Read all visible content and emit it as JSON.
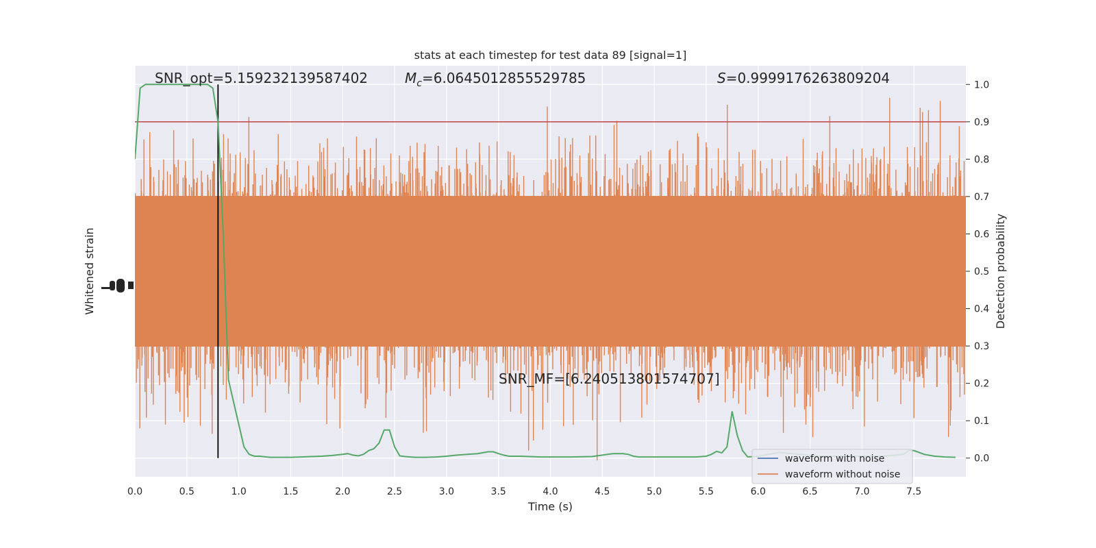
{
  "chart_data": {
    "type": "line",
    "title": "stats at each timestep for test data 89 [signal=1]",
    "xlabel": "Time (s)",
    "ylabel_left": "Whitened strain",
    "ylabel_right": "Detection probability",
    "xlim": [
      0.0,
      8.0
    ],
    "ylim_right": [
      -0.05,
      1.05
    ],
    "x_ticks": [
      "0.0",
      "0.5",
      "1.0",
      "1.5",
      "2.0",
      "2.5",
      "3.0",
      "3.5",
      "4.0",
      "4.5",
      "5.0",
      "5.5",
      "6.0",
      "6.5",
      "7.0",
      "7.5"
    ],
    "y_ticks_right": [
      "0.0",
      "0.1",
      "0.2",
      "0.3",
      "0.4",
      "0.5",
      "0.6",
      "0.7",
      "0.8",
      "0.9",
      "1.0"
    ],
    "grid": true,
    "legend_placement": "lower-right",
    "annotations": {
      "snr_opt": "SNR_opt=5.159232139587402",
      "mc_symbol": "M",
      "mc_sub": "c",
      "mc_value": "=6.0645012855529785",
      "s_symbol": "S",
      "s_value": "=0.9999176263809204",
      "snr_mf": "SNR_MF=[6.240513801574707]"
    },
    "threshold": {
      "value": 0.9,
      "color": "#c44e52"
    },
    "marker_line": {
      "x": 0.8,
      "color": "#000000"
    },
    "series": [
      {
        "name": "waveform with noise",
        "color": "#4c72b0",
        "kind": "strain"
      },
      {
        "name": "waveform without noise",
        "color": "#dd8452",
        "kind": "strain"
      },
      {
        "color": "#55a868",
        "kind": "probability",
        "x": [
          0.0,
          0.05,
          0.1,
          0.15,
          0.2,
          0.3,
          0.4,
          0.5,
          0.6,
          0.7,
          0.75,
          0.8,
          0.85,
          0.9,
          0.95,
          1.0,
          1.05,
          1.1,
          1.15,
          1.2,
          1.3,
          1.4,
          1.5,
          1.6,
          1.7,
          1.8,
          1.9,
          2.0,
          2.05,
          2.1,
          2.15,
          2.2,
          2.25,
          2.3,
          2.35,
          2.4,
          2.45,
          2.5,
          2.55,
          2.6,
          2.65,
          2.7,
          2.8,
          2.9,
          3.0,
          3.1,
          3.2,
          3.3,
          3.4,
          3.45,
          3.5,
          3.55,
          3.6,
          3.7,
          3.8,
          3.9,
          4.0,
          4.2,
          4.4,
          4.6,
          4.7,
          4.75,
          4.8,
          4.85,
          4.9,
          5.0,
          5.2,
          5.4,
          5.5,
          5.55,
          5.6,
          5.65,
          5.7,
          5.75,
          5.8,
          5.85,
          5.9,
          6.0,
          6.1,
          6.2,
          6.4,
          6.6,
          6.8,
          7.0,
          7.2,
          7.4,
          7.45,
          7.5,
          7.55,
          7.6,
          7.7,
          7.8,
          7.9
        ],
        "y": [
          0.8,
          0.99,
          1.0,
          1.0,
          1.0,
          1.0,
          1.0,
          1.0,
          1.0,
          1.0,
          0.99,
          0.9,
          0.6,
          0.21,
          0.15,
          0.09,
          0.03,
          0.01,
          0.005,
          0.005,
          0.002,
          0.002,
          0.002,
          0.003,
          0.004,
          0.005,
          0.007,
          0.01,
          0.012,
          0.008,
          0.006,
          0.01,
          0.02,
          0.025,
          0.04,
          0.075,
          0.075,
          0.03,
          0.006,
          0.004,
          0.003,
          0.002,
          0.002,
          0.003,
          0.005,
          0.008,
          0.01,
          0.012,
          0.017,
          0.017,
          0.012,
          0.008,
          0.005,
          0.005,
          0.004,
          0.003,
          0.003,
          0.003,
          0.004,
          0.012,
          0.012,
          0.01,
          0.005,
          0.003,
          0.003,
          0.003,
          0.003,
          0.003,
          0.005,
          0.01,
          0.018,
          0.014,
          0.03,
          0.125,
          0.06,
          0.02,
          0.003,
          0.005,
          0.01,
          0.015,
          0.01,
          0.005,
          0.005,
          0.005,
          0.005,
          0.01,
          0.02,
          0.02,
          0.015,
          0.01,
          0.005,
          0.003,
          0.002
        ]
      }
    ]
  }
}
